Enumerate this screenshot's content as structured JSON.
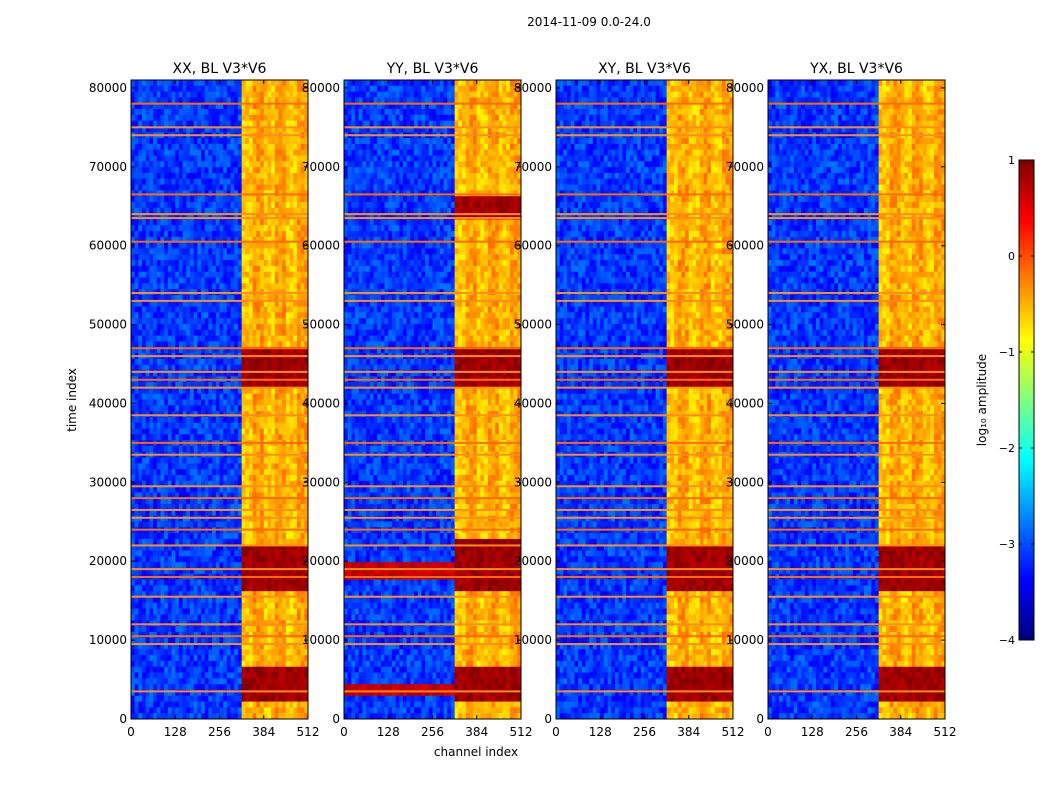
{
  "figure": {
    "suptitle": "2014-11-09 0.0-24.0",
    "ylabel": "time index",
    "xlabel": "channel index"
  },
  "colorbar": {
    "label": "log₁₀ amplitude",
    "range": [
      -4,
      1
    ],
    "ticks": [
      "1",
      "0",
      "−1",
      "−2",
      "−3",
      "−4"
    ],
    "tick_values": [
      1,
      0,
      -1,
      -2,
      -3,
      -4
    ],
    "colormap": "jet"
  },
  "chart_data": [
    {
      "type": "heatmap",
      "title": "XX, BL V3*V6",
      "xlabel": "channel index",
      "ylabel": "time index",
      "xlim": [
        0,
        512
      ],
      "ylim": [
        0,
        81000
      ],
      "xticks": [
        0,
        128,
        256,
        384,
        512
      ],
      "yticks": [
        0,
        10000,
        20000,
        30000,
        40000,
        50000,
        60000,
        70000,
        80000
      ],
      "band_channels": [
        325,
        512
      ],
      "background_level": -3.1,
      "band_level": -0.6,
      "strong_time_ranges": [
        [
          2000,
          6500
        ],
        [
          16500,
          22000
        ],
        [
          42000,
          47000
        ]
      ],
      "flag_rows": [
        78000,
        75000,
        74000,
        66500,
        64000,
        63500,
        60500,
        54000,
        53000,
        47000,
        46000,
        44000,
        43000,
        42000,
        38500,
        35000,
        33500,
        29500,
        28000,
        26500,
        25500,
        24000,
        22000,
        19000,
        18000,
        15500,
        12000,
        10500,
        9500,
        3500
      ]
    },
    {
      "type": "heatmap",
      "title": "YY, BL V3*V6",
      "xlabel": "channel index",
      "ylabel": "time index",
      "xlim": [
        0,
        512
      ],
      "ylim": [
        0,
        81000
      ],
      "xticks": [
        0,
        128,
        256,
        384,
        512
      ],
      "yticks": [
        0,
        10000,
        20000,
        30000,
        40000,
        50000,
        60000,
        70000,
        80000
      ],
      "band_channels": [
        325,
        512
      ],
      "background_level": -3.1,
      "band_level": -0.6,
      "strong_time_ranges": [
        [
          2000,
          6500
        ],
        [
          16500,
          22500
        ],
        [
          42000,
          47000
        ],
        [
          63500,
          66000
        ]
      ],
      "full_width_strong_rows": [
        [
          2800,
          4200
        ],
        [
          18000,
          20000
        ]
      ],
      "flag_rows": [
        78000,
        75000,
        74000,
        66500,
        64000,
        63500,
        60500,
        54000,
        53000,
        47000,
        46000,
        44000,
        43000,
        42000,
        38500,
        35000,
        33500,
        29500,
        28000,
        26500,
        25500,
        24000,
        22000,
        19000,
        18000,
        15500,
        12000,
        10500,
        9500,
        3500
      ]
    },
    {
      "type": "heatmap",
      "title": "XY, BL V3*V6",
      "xlabel": "channel index",
      "ylabel": "time index",
      "xlim": [
        0,
        512
      ],
      "ylim": [
        0,
        81000
      ],
      "xticks": [
        0,
        128,
        256,
        384,
        512
      ],
      "yticks": [
        0,
        10000,
        20000,
        30000,
        40000,
        50000,
        60000,
        70000,
        80000
      ],
      "band_channels": [
        325,
        512
      ],
      "background_level": -3.1,
      "band_level": -0.6,
      "strong_time_ranges": [
        [
          2000,
          6500
        ],
        [
          16500,
          22000
        ],
        [
          42000,
          47000
        ]
      ],
      "flag_rows": [
        78000,
        75000,
        74000,
        66500,
        64000,
        63500,
        60500,
        54000,
        53000,
        47000,
        46000,
        44000,
        43000,
        42000,
        38500,
        35000,
        33500,
        29500,
        28000,
        26500,
        25500,
        24000,
        22000,
        19000,
        18000,
        15500,
        12000,
        10500,
        9500,
        3500
      ]
    },
    {
      "type": "heatmap",
      "title": "YX, BL V3*V6",
      "xlabel": "channel index",
      "ylabel": "time index",
      "xlim": [
        0,
        512
      ],
      "ylim": [
        0,
        81000
      ],
      "xticks": [
        0,
        128,
        256,
        384,
        512
      ],
      "yticks": [
        0,
        10000,
        20000,
        30000,
        40000,
        50000,
        60000,
        70000,
        80000
      ],
      "band_channels": [
        325,
        512
      ],
      "background_level": -3.1,
      "band_level": -0.6,
      "strong_time_ranges": [
        [
          2000,
          6500
        ],
        [
          16500,
          22000
        ],
        [
          42000,
          47000
        ]
      ],
      "flag_rows": [
        78000,
        75000,
        74000,
        66500,
        64000,
        63500,
        60500,
        54000,
        53000,
        47000,
        46000,
        44000,
        43000,
        42000,
        38500,
        35000,
        33500,
        29500,
        28000,
        26500,
        25500,
        24000,
        22000,
        19000,
        18000,
        15500,
        12000,
        10500,
        9500,
        3500
      ]
    }
  ]
}
